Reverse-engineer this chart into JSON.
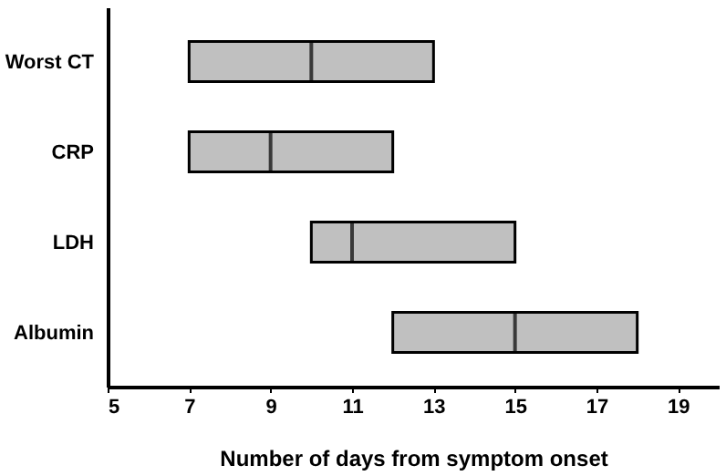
{
  "chart_data": {
    "type": "box",
    "orientation": "horizontal",
    "xlabel": "Number of days from symptom onset",
    "categories": [
      "Worst CT",
      "CRP",
      "LDH",
      "Albumin"
    ],
    "series": [
      {
        "color": "#c0c0c0",
        "boxes": [
          {
            "low": 7,
            "q1": 7,
            "median": 10,
            "q3": 13,
            "high": 13
          },
          {
            "low": 7,
            "q1": 7,
            "median": 9,
            "q3": 12,
            "high": 12
          },
          {
            "low": 10,
            "q1": 10,
            "median": 11,
            "q3": 15,
            "high": 15
          },
          {
            "low": 12,
            "q1": 12,
            "median": 15,
            "q3": 18,
            "high": 18
          }
        ]
      }
    ],
    "xlim": [
      5,
      20
    ],
    "xticks": [
      5,
      7,
      9,
      11,
      13,
      15,
      17,
      19
    ],
    "grid": false
  }
}
